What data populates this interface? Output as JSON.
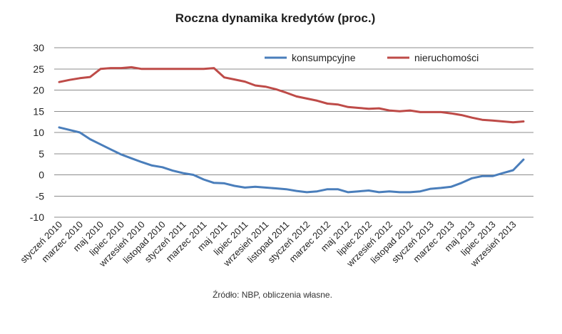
{
  "chart_data": {
    "type": "line",
    "title": "Roczna dynamika kredytów (proc.)",
    "source": "Źródło: NBP, obliczenia własne.",
    "ylim": [
      -10,
      30
    ],
    "yticks": [
      30,
      25,
      20,
      15,
      10,
      5,
      0,
      -5,
      -10
    ],
    "grid": true,
    "legend_position": "top-right",
    "x_labels": [
      "styczeń 2010",
      "marzec 2010",
      "maj 2010",
      "lipiec 2010",
      "wrzesień 2010",
      "listopad 2010",
      "styczeń 2011",
      "marzec 2011",
      "maj 2011",
      "lipiec 2011",
      "wrzesień 2011",
      "listopad 2011",
      "styczeń 2012",
      "marzec 2012",
      "maj 2012",
      "lipiec 2012",
      "wrzesień 2012",
      "listopad 2012",
      "styczeń 2013",
      "marzec 2013",
      "maj 2013",
      "lipiec 2013",
      "wrzesień 2013"
    ],
    "x": [
      "2010-01",
      "2010-02",
      "2010-03",
      "2010-04",
      "2010-05",
      "2010-06",
      "2010-07",
      "2010-08",
      "2010-09",
      "2010-10",
      "2010-11",
      "2010-12",
      "2011-01",
      "2011-02",
      "2011-03",
      "2011-04",
      "2011-05",
      "2011-06",
      "2011-07",
      "2011-08",
      "2011-09",
      "2011-10",
      "2011-11",
      "2011-12",
      "2012-01",
      "2012-02",
      "2012-03",
      "2012-04",
      "2012-05",
      "2012-06",
      "2012-07",
      "2012-08",
      "2012-09",
      "2012-10",
      "2012-11",
      "2012-12",
      "2013-01",
      "2013-02",
      "2013-03",
      "2013-04",
      "2013-05",
      "2013-06",
      "2013-07",
      "2013-08",
      "2013-09",
      "2013-10"
    ],
    "series": [
      {
        "name": "konsumpcyjne",
        "color": "#4a7ebb",
        "values": [
          11.2,
          10.6,
          10.0,
          8.4,
          7.2,
          6.0,
          4.8,
          3.9,
          3.0,
          2.2,
          1.8,
          1.0,
          0.4,
          0.0,
          -1.1,
          -1.9,
          -2.0,
          -2.6,
          -3.0,
          -2.8,
          -3.0,
          -3.2,
          -3.4,
          -3.8,
          -4.1,
          -3.9,
          -3.4,
          -3.4,
          -4.1,
          -3.9,
          -3.7,
          -4.1,
          -3.9,
          -4.1,
          -4.1,
          -3.9,
          -3.3,
          -3.1,
          -2.8,
          -1.9,
          -0.8,
          -0.3,
          -0.3,
          0.4,
          1.1,
          3.6
        ]
      },
      {
        "name": "nieruchomości",
        "color": "#be4b48",
        "values": [
          21.9,
          22.4,
          22.8,
          23.1,
          25.0,
          25.2,
          25.2,
          25.4,
          25.0,
          25.0,
          25.0,
          25.0,
          25.0,
          25.0,
          25.0,
          25.2,
          23.0,
          22.5,
          22.0,
          21.1,
          20.8,
          20.2,
          19.4,
          18.5,
          18.0,
          17.5,
          16.8,
          16.6,
          16.0,
          15.8,
          15.6,
          15.7,
          15.2,
          15.0,
          15.2,
          14.8,
          14.8,
          14.8,
          14.5,
          14.1,
          13.5,
          13.0,
          12.8,
          12.6,
          12.4,
          12.6
        ]
      }
    ]
  }
}
